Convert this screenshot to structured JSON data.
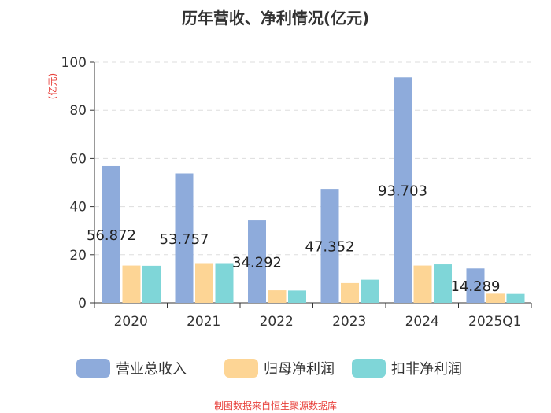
{
  "chart_data": {
    "type": "bar",
    "title": "历年营收、净利情况(亿元)",
    "ylabel": "(亿元)",
    "xlabel": "",
    "ylim": [
      0,
      100
    ],
    "yticks": [
      "0",
      "20",
      "40",
      "60",
      "80",
      "100"
    ],
    "categories": [
      "2020",
      "2021",
      "2022",
      "2023",
      "2024",
      "2025Q1"
    ],
    "series": [
      {
        "name": "营业总收入",
        "color": "#8eabdb",
        "values": [
          56.872,
          53.757,
          34.292,
          47.352,
          93.703,
          14.289
        ]
      },
      {
        "name": "归母净利润",
        "color": "#fdd595",
        "values": [
          15.5,
          16.5,
          5.2,
          8.2,
          15.5,
          3.8
        ]
      },
      {
        "name": "扣非净利润",
        "color": "#7fd6d8",
        "values": [
          15.4,
          16.5,
          5.1,
          9.6,
          16.0,
          3.7
        ]
      }
    ],
    "data_labels": [
      "56.872",
      "53.757",
      "34.292",
      "47.352",
      "93.703",
      "14.289"
    ],
    "grid": true,
    "legend": "bottom-center"
  },
  "footer": {
    "text": "制图数据来自恒生聚源数据库",
    "color": "#e8413c"
  }
}
